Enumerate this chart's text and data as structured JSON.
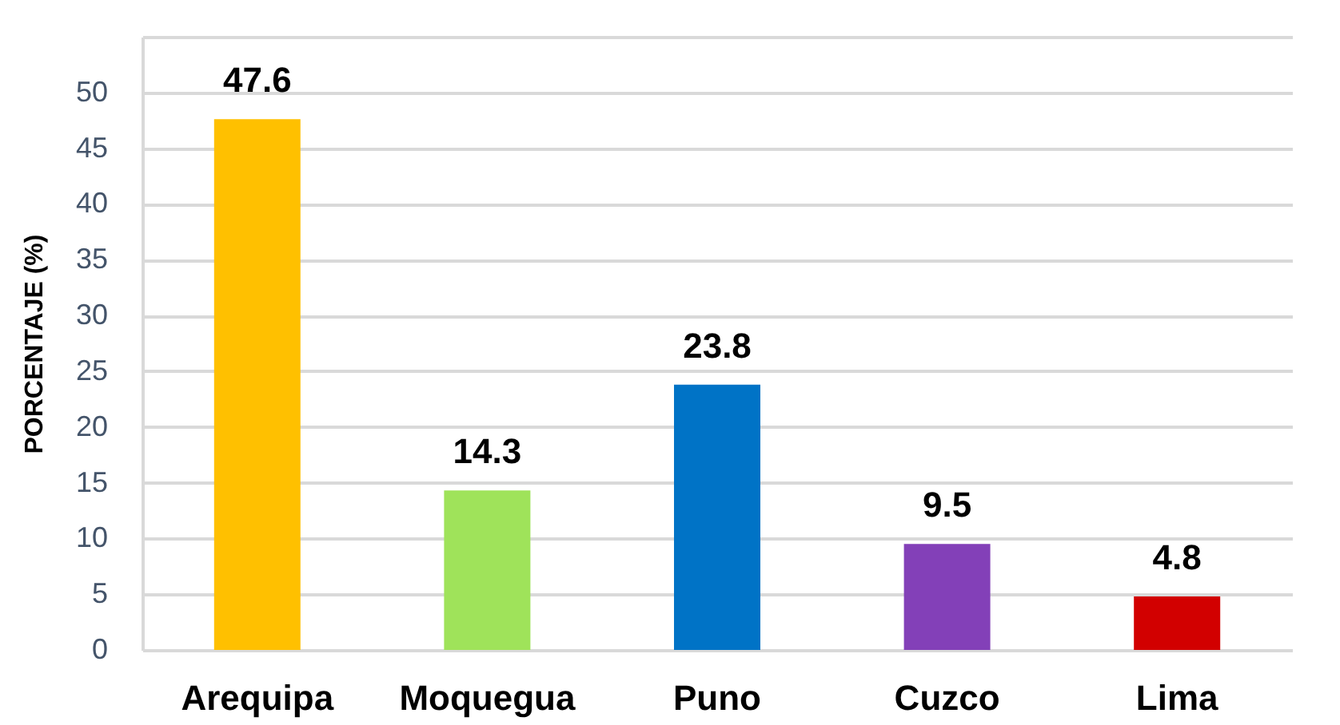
{
  "chart_data": {
    "type": "bar",
    "ylabel": "PORCENTAJE (%)",
    "categories": [
      "Arequipa",
      "Moquegua",
      "Puno",
      "Cuzco",
      "Lima"
    ],
    "values": [
      47.6,
      14.3,
      23.8,
      9.5,
      4.8
    ],
    "colors": [
      "#ffc000",
      "#9fe35a",
      "#0073c6",
      "#8340b8",
      "#d20000"
    ],
    "ylim": [
      0,
      55
    ],
    "yticks": [
      0,
      5,
      10,
      15,
      20,
      25,
      30,
      35,
      40,
      45,
      50,
      {
        "value": 55,
        "label": null
      }
    ],
    "grid": "y",
    "data_labels": true
  }
}
